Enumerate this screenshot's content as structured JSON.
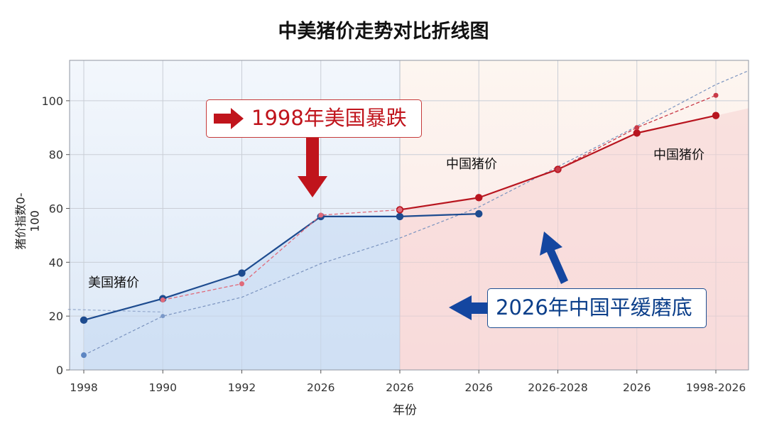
{
  "chart_data": {
    "type": "line",
    "title": "中美猪价走势对比折线图",
    "xlabel": "年份",
    "ylabel": "猪价指数0-100",
    "categories": [
      "1998",
      "1990",
      "1992",
      "2026",
      "2026",
      "2026",
      "2026-2028",
      "2026",
      "1998-2026"
    ],
    "ylim": [
      0,
      115
    ],
    "yticks": [
      0,
      20,
      40,
      60,
      80,
      100
    ],
    "grid": true,
    "legend": "none",
    "series": [
      {
        "key": "us",
        "name": "美国猪价",
        "color": "#1d4b8f",
        "values": [
          18.5,
          26.5,
          36,
          57,
          57,
          58,
          null,
          null,
          null
        ]
      },
      {
        "key": "cn",
        "name": "中国猪价",
        "color": "#b8151f",
        "values": [
          null,
          null,
          null,
          null,
          59.5,
          64,
          74.5,
          88,
          94.5
        ]
      },
      {
        "key": "us_dash",
        "name": "",
        "color": "#e06a7a",
        "style": "dashed",
        "values": [
          null,
          26,
          32,
          57.5,
          59.5,
          null,
          null,
          null,
          null
        ]
      },
      {
        "key": "cn_trend",
        "name": "",
        "color": "#c93a48",
        "style": "dashed",
        "values": [
          null,
          null,
          null,
          null,
          null,
          null,
          74.5,
          90,
          102
        ]
      }
    ],
    "trend_lines": [
      {
        "color": "#7a93bf",
        "points": [
          [
            0,
            5.5
          ],
          [
            1,
            20
          ],
          [
            2,
            27
          ],
          [
            3,
            39.5
          ],
          [
            4,
            49
          ],
          [
            5,
            60.5
          ],
          [
            6,
            75.5
          ],
          [
            7,
            90.5
          ],
          [
            8,
            106
          ],
          [
            8.4,
            111
          ]
        ]
      },
      {
        "color": "#96aace",
        "points": [
          [
            -0.2,
            22.5
          ],
          [
            1,
            21.5
          ]
        ]
      }
    ],
    "annotations": {
      "us_drop": "1998年美国暴跌",
      "cn_bottom": "2026年中国平缓磨底"
    },
    "series_labels": {
      "us": "美国猪价",
      "cn_mid": "中国猪价",
      "cn_right": "中国猪价"
    },
    "background_regions": {
      "left_color": "#dbe8f8",
      "right_color": "#fbe4e4",
      "split_category_index": 4
    }
  }
}
